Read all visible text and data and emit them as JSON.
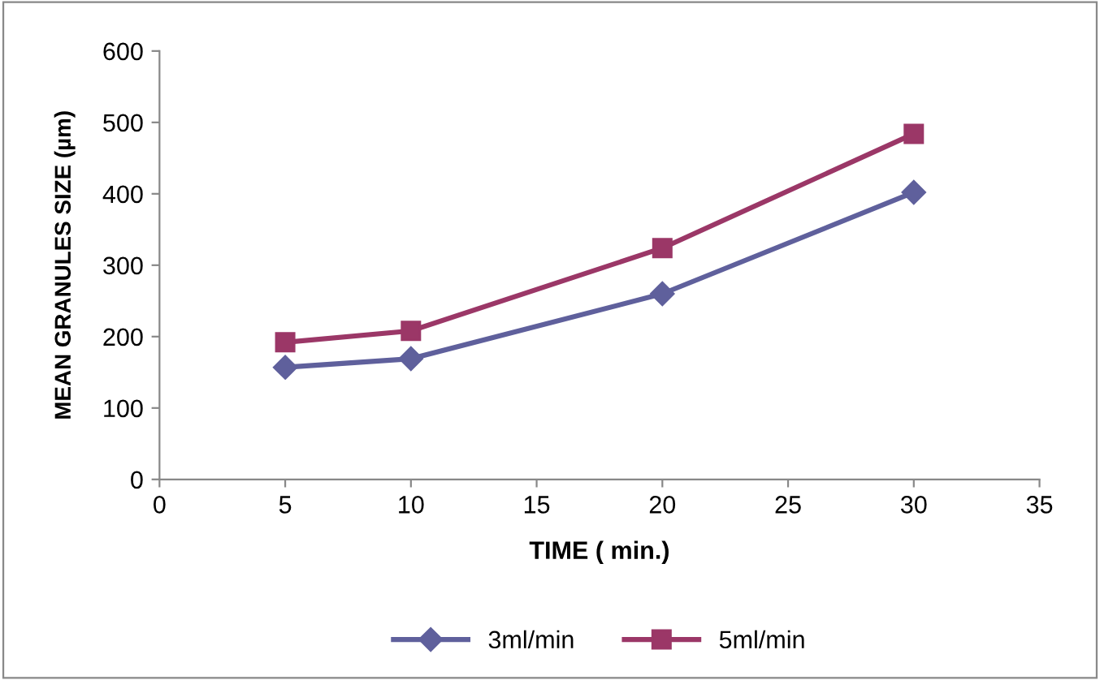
{
  "chart_data": {
    "type": "line",
    "xlabel": "TIME ( min.)",
    "ylabel": "MEAN GRANULES SIZE (µm)",
    "x": [
      5,
      10,
      20,
      30
    ],
    "series": [
      {
        "name": "3ml/min",
        "color": "#5f609c",
        "values": [
          157,
          169,
          260,
          402
        ],
        "marker": "diamond"
      },
      {
        "name": "5ml/min",
        "color": "#9b3767",
        "values": [
          192,
          208,
          324,
          484
        ],
        "marker": "square"
      }
    ],
    "xlim": [
      0,
      35
    ],
    "xticks": [
      0,
      5,
      10,
      15,
      20,
      25,
      30,
      35
    ],
    "ylim": [
      0,
      600
    ],
    "yticks": [
      0,
      100,
      200,
      300,
      400,
      500,
      600
    ],
    "grid": false,
    "legend": "bottom",
    "line_style": "solid"
  }
}
